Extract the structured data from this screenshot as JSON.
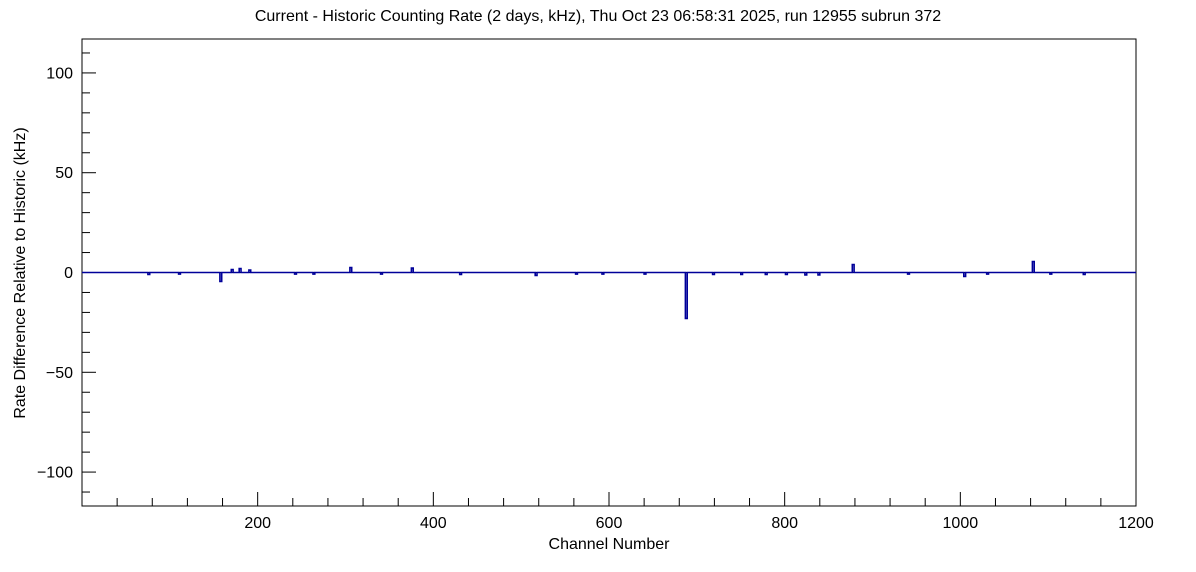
{
  "chart_data": {
    "type": "line",
    "title": "Current - Historic Counting Rate (2 days, kHz), Thu Oct 23 06:58:31 2025, run 12955 subrun 372",
    "xlabel": "Channel Number",
    "ylabel": "Rate Difference Relative to Historic (kHz)",
    "xlim": [
      0,
      1200
    ],
    "ylim": [
      -117,
      117
    ],
    "x_major_ticks": [
      200,
      400,
      600,
      800,
      1000,
      1200
    ],
    "x_minor_step": 40,
    "y_major_ticks": [
      -100,
      -50,
      0,
      50,
      100
    ],
    "y_minor_step": 10,
    "grid": false,
    "legend": "none",
    "baseline": 0,
    "line_color": "#000099",
    "axis_color": "#000000",
    "spikes": [
      {
        "channel": 75,
        "value": -1.0
      },
      {
        "channel": 110,
        "value": -0.8
      },
      {
        "channel": 157,
        "value": -4.5
      },
      {
        "channel": 170,
        "value": 1.5
      },
      {
        "channel": 179,
        "value": 2.0
      },
      {
        "channel": 190,
        "value": 1.2
      },
      {
        "channel": 242,
        "value": -0.8
      },
      {
        "channel": 263,
        "value": -0.8
      },
      {
        "channel": 305,
        "value": 2.5
      },
      {
        "channel": 340,
        "value": -0.8
      },
      {
        "channel": 375,
        "value": 2.2
      },
      {
        "channel": 430,
        "value": -1.0
      },
      {
        "channel": 516,
        "value": -1.5
      },
      {
        "channel": 562,
        "value": -0.8
      },
      {
        "channel": 592,
        "value": -0.8
      },
      {
        "channel": 640,
        "value": -0.8
      },
      {
        "channel": 687,
        "value": -23.0
      },
      {
        "channel": 718,
        "value": -1.0
      },
      {
        "channel": 750,
        "value": -1.0
      },
      {
        "channel": 778,
        "value": -1.0
      },
      {
        "channel": 801,
        "value": -1.0
      },
      {
        "channel": 823,
        "value": -1.2
      },
      {
        "channel": 838,
        "value": -1.2
      },
      {
        "channel": 877,
        "value": 4.0
      },
      {
        "channel": 940,
        "value": -0.8
      },
      {
        "channel": 1004,
        "value": -2.0
      },
      {
        "channel": 1030,
        "value": -0.8
      },
      {
        "channel": 1082,
        "value": 5.5
      },
      {
        "channel": 1102,
        "value": -0.8
      },
      {
        "channel": 1140,
        "value": -1.0
      }
    ]
  }
}
